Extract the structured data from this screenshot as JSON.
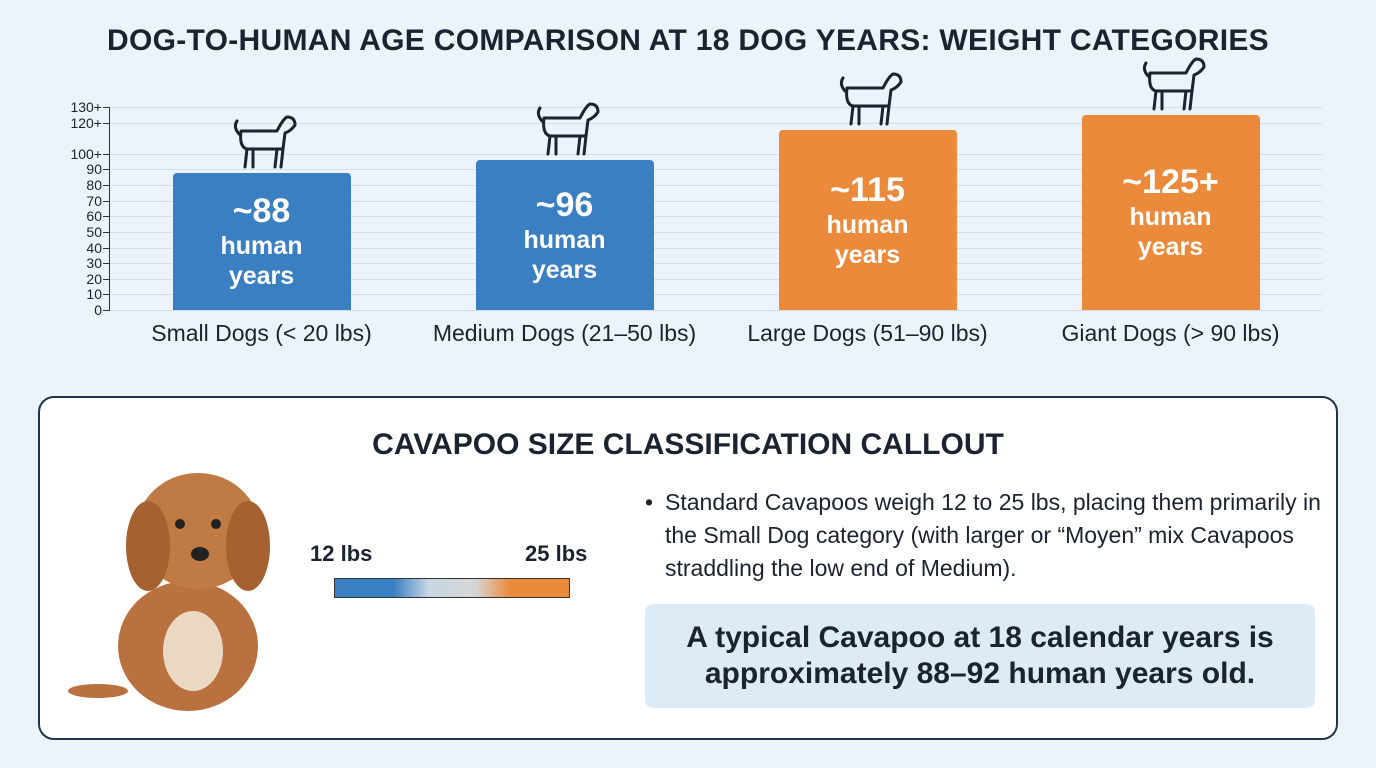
{
  "chart_data": {
    "type": "bar",
    "title": "DOG-TO-HUMAN AGE COMPARISON AT 18 DOG YEARS: WEIGHT CATEGORIES",
    "categories": [
      "Small Dogs (< 20 lbs)",
      "Medium Dogs (21–50 lbs)",
      "Large Dogs (51–90 lbs)",
      "Giant Dogs (> 90 lbs)"
    ],
    "values": [
      88,
      96,
      115,
      125
    ],
    "value_labels": [
      "~88",
      "~96",
      "~115",
      "~125+"
    ],
    "value_unit": "human years",
    "colors": [
      "#3a7fc1",
      "#3a7fc1",
      "#ec8a3b",
      "#ec8a3b"
    ],
    "ylim": [
      0,
      130
    ],
    "yticks": [
      0,
      10,
      20,
      30,
      40,
      50,
      60,
      70,
      80,
      90,
      {
        "value": 100,
        "label": "100+"
      },
      {
        "value": 120,
        "label": "120+"
      },
      {
        "value": 130,
        "label": "130+"
      }
    ],
    "grid": true
  },
  "callout": {
    "title": "CAVAPOO SIZE CLASSIFICATION CALLOUT",
    "scale_min_label": "12 lbs",
    "scale_max_label": "25 lbs",
    "bullet": "Standard Cavapoos weigh 12 to 25 lbs, placing them primarily in the Small Dog category (with larger or “Moyen” mix Cavapoos straddling the low end of Medium).",
    "highlight": "A typical Cavapoo at 18 calendar years is approximately 88–92 human years old."
  }
}
